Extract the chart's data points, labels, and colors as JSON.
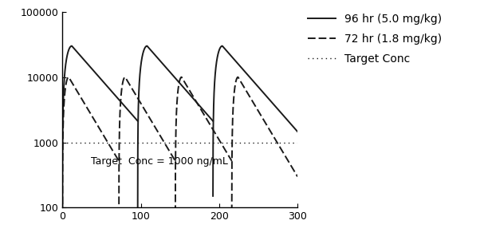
{
  "solid_label": "96 hr (5.0 mg/kg)",
  "dashed_label": "72 hr (1.8 mg/kg)",
  "target_label": "Target Conc",
  "target_value": 1000,
  "annotation_text": "Target  Conc = 1000 ng/mL",
  "xlim": [
    0,
    300
  ],
  "ylim": [
    100,
    100000
  ],
  "xticks": [
    0,
    100,
    200,
    300
  ],
  "solid_color": "#1a1a1a",
  "dashed_color": "#1a1a1a",
  "target_color": "#1a1a1a",
  "line_width": 1.4,
  "solid_doses": [
    0,
    96,
    192
  ],
  "solid_peak": 30000,
  "solid_half_life": 22,
  "solid_trise": 12,
  "dashed_doses": [
    0,
    72,
    144,
    216
  ],
  "dashed_peak": 10000,
  "dashed_half_life": 15,
  "dashed_trise": 8,
  "bg_color": "#ffffff",
  "legend_fontsize": 10,
  "tick_fontsize": 9
}
